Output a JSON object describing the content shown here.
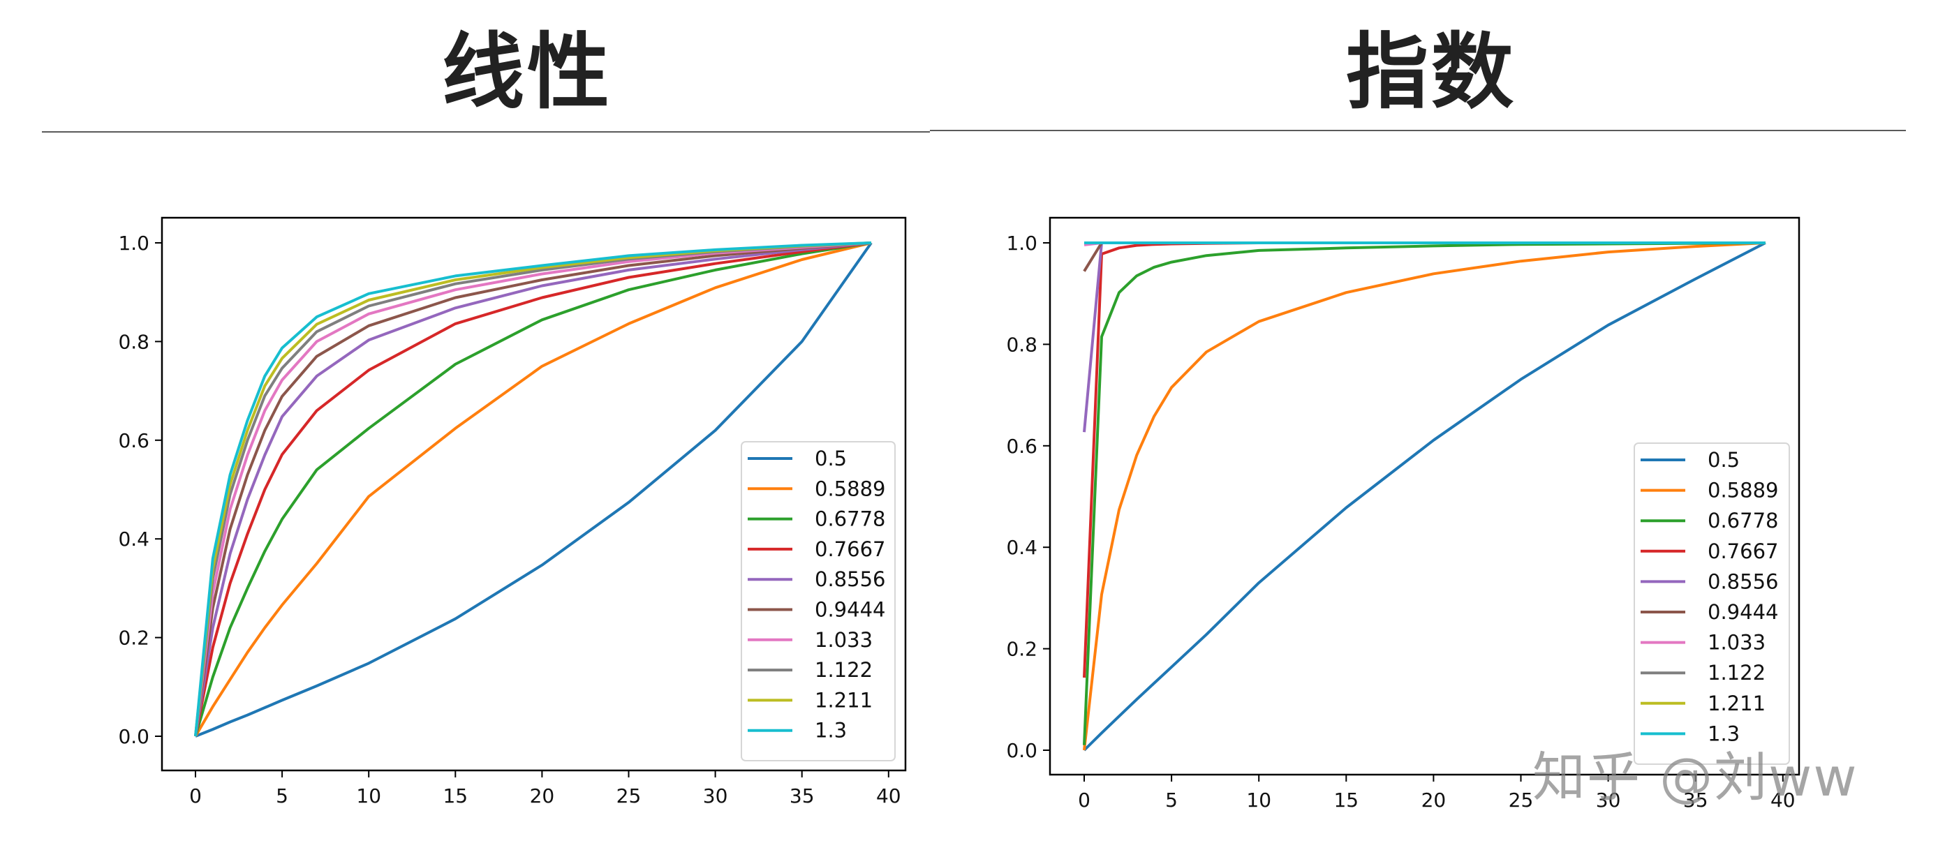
{
  "titles": {
    "left": "线性",
    "right": "指数"
  },
  "watermark": "知乎 @刘ww",
  "colors": [
    "#1f77b4",
    "#ff7f0e",
    "#2ca02c",
    "#d62728",
    "#9467bd",
    "#8c564b",
    "#e377c2",
    "#7f7f7f",
    "#bcbd22",
    "#17becf"
  ],
  "chart_data": [
    {
      "type": "line",
      "title": "线性",
      "xlabel": "",
      "ylabel": "",
      "xlim": [
        -2.2,
        41.2
      ],
      "ylim": [
        -0.069,
        1.05
      ],
      "xticks": [
        0,
        5,
        10,
        15,
        20,
        25,
        30,
        35,
        40
      ],
      "yticks": [
        0.0,
        0.2,
        0.4,
        0.6,
        0.8,
        1.0
      ],
      "ytick_labels": [
        "0.0",
        "0.2",
        "0.4",
        "0.6",
        "0.8",
        "1.0"
      ],
      "grid": false,
      "legend_position": "lower right",
      "x": [
        0,
        1,
        2,
        3,
        4,
        5,
        7,
        10,
        15,
        20,
        25,
        30,
        35,
        39
      ],
      "series": [
        {
          "name": "0.5",
          "values": [
            0,
            0.014,
            0.029,
            0.043,
            0.058,
            0.073,
            0.102,
            0.148,
            0.238,
            0.347,
            0.474,
            0.62,
            0.8,
            1.0
          ]
        },
        {
          "name": "0.5889",
          "values": [
            0,
            0.06,
            0.115,
            0.17,
            0.22,
            0.266,
            0.35,
            0.486,
            0.624,
            0.75,
            0.836,
            0.909,
            0.966,
            1.0
          ]
        },
        {
          "name": "0.6778",
          "values": [
            0,
            0.12,
            0.22,
            0.3,
            0.375,
            0.44,
            0.54,
            0.624,
            0.754,
            0.844,
            0.905,
            0.945,
            0.978,
            1.0
          ]
        },
        {
          "name": "0.7667",
          "values": [
            0,
            0.18,
            0.31,
            0.41,
            0.5,
            0.571,
            0.66,
            0.742,
            0.836,
            0.889,
            0.93,
            0.958,
            0.982,
            1.0
          ]
        },
        {
          "name": "0.8556",
          "values": [
            0,
            0.22,
            0.37,
            0.48,
            0.57,
            0.648,
            0.73,
            0.803,
            0.868,
            0.913,
            0.945,
            0.967,
            0.986,
            1.0
          ]
        },
        {
          "name": "0.9444",
          "values": [
            0,
            0.26,
            0.42,
            0.53,
            0.62,
            0.689,
            0.77,
            0.832,
            0.889,
            0.925,
            0.954,
            0.974,
            0.989,
            1.0
          ]
        },
        {
          "name": "1.033",
          "values": [
            0,
            0.29,
            0.46,
            0.57,
            0.66,
            0.722,
            0.8,
            0.856,
            0.905,
            0.937,
            0.962,
            0.979,
            0.991,
            1.0
          ]
        },
        {
          "name": "1.122",
          "values": [
            0,
            0.32,
            0.49,
            0.6,
            0.69,
            0.746,
            0.82,
            0.872,
            0.917,
            0.945,
            0.967,
            0.982,
            0.993,
            1.0
          ]
        },
        {
          "name": "1.211",
          "values": [
            0,
            0.34,
            0.51,
            0.62,
            0.71,
            0.766,
            0.835,
            0.884,
            0.925,
            0.95,
            0.97,
            0.984,
            0.994,
            1.0
          ]
        },
        {
          "name": "1.3",
          "values": [
            0,
            0.36,
            0.53,
            0.64,
            0.73,
            0.787,
            0.85,
            0.897,
            0.933,
            0.954,
            0.974,
            0.986,
            0.995,
            1.0
          ]
        }
      ]
    },
    {
      "type": "line",
      "title": "指数",
      "xlabel": "",
      "ylabel": "",
      "xlim": [
        -1.95,
        40.95
      ],
      "ylim": [
        -0.048,
        1.05
      ],
      "xticks": [
        0,
        5,
        10,
        15,
        20,
        25,
        30,
        35,
        40
      ],
      "yticks": [
        0.0,
        0.2,
        0.4,
        0.6,
        0.8,
        1.0
      ],
      "ytick_labels": [
        "0.0",
        "0.2",
        "0.4",
        "0.6",
        "0.8",
        "1.0"
      ],
      "grid": false,
      "legend_position": "lower right",
      "x": [
        0,
        1,
        2,
        3,
        4,
        5,
        7,
        10,
        15,
        20,
        25,
        30,
        35,
        39
      ],
      "series": [
        {
          "name": "0.5",
          "values": [
            0,
            0.034,
            0.067,
            0.1,
            0.132,
            0.164,
            0.228,
            0.33,
            0.478,
            0.611,
            0.731,
            0.838,
            0.929,
            1.0
          ]
        },
        {
          "name": "0.5889",
          "values": [
            0,
            0.307,
            0.474,
            0.581,
            0.658,
            0.715,
            0.785,
            0.845,
            0.902,
            0.939,
            0.964,
            0.982,
            0.993,
            1.0
          ]
        },
        {
          "name": "0.6778",
          "values": [
            0.01,
            0.815,
            0.902,
            0.935,
            0.952,
            0.962,
            0.975,
            0.985,
            0.99,
            0.994,
            0.997,
            0.998,
            0.999,
            1.0
          ]
        },
        {
          "name": "0.7667",
          "values": [
            0.143,
            0.978,
            0.99,
            0.995,
            0.997,
            0.998,
            0.999,
            1.0,
            1.0,
            1.0,
            1.0,
            1.0,
            1.0,
            1.0
          ]
        },
        {
          "name": "0.8556",
          "values": [
            0.627,
            1.0,
            1.0,
            1.0,
            1.0,
            1.0,
            1.0,
            1.0,
            1.0,
            1.0,
            1.0,
            1.0,
            1.0,
            1.0
          ]
        },
        {
          "name": "0.9444",
          "values": [
            0.944,
            1.0,
            1.0,
            1.0,
            1.0,
            1.0,
            1.0,
            1.0,
            1.0,
            1.0,
            1.0,
            1.0,
            1.0,
            1.0
          ]
        },
        {
          "name": "1.033",
          "values": [
            0.996,
            1.0,
            1.0,
            1.0,
            1.0,
            1.0,
            1.0,
            1.0,
            1.0,
            1.0,
            1.0,
            1.0,
            1.0,
            1.0
          ]
        },
        {
          "name": "1.122",
          "values": [
            1.0,
            1.0,
            1.0,
            1.0,
            1.0,
            1.0,
            1.0,
            1.0,
            1.0,
            1.0,
            1.0,
            1.0,
            1.0,
            1.0
          ]
        },
        {
          "name": "1.211",
          "values": [
            1.0,
            1.0,
            1.0,
            1.0,
            1.0,
            1.0,
            1.0,
            1.0,
            1.0,
            1.0,
            1.0,
            1.0,
            1.0,
            1.0
          ]
        },
        {
          "name": "1.3",
          "values": [
            1.0,
            1.0,
            1.0,
            1.0,
            1.0,
            1.0,
            1.0,
            1.0,
            1.0,
            1.0,
            1.0,
            1.0,
            1.0,
            1.0
          ]
        }
      ]
    }
  ]
}
